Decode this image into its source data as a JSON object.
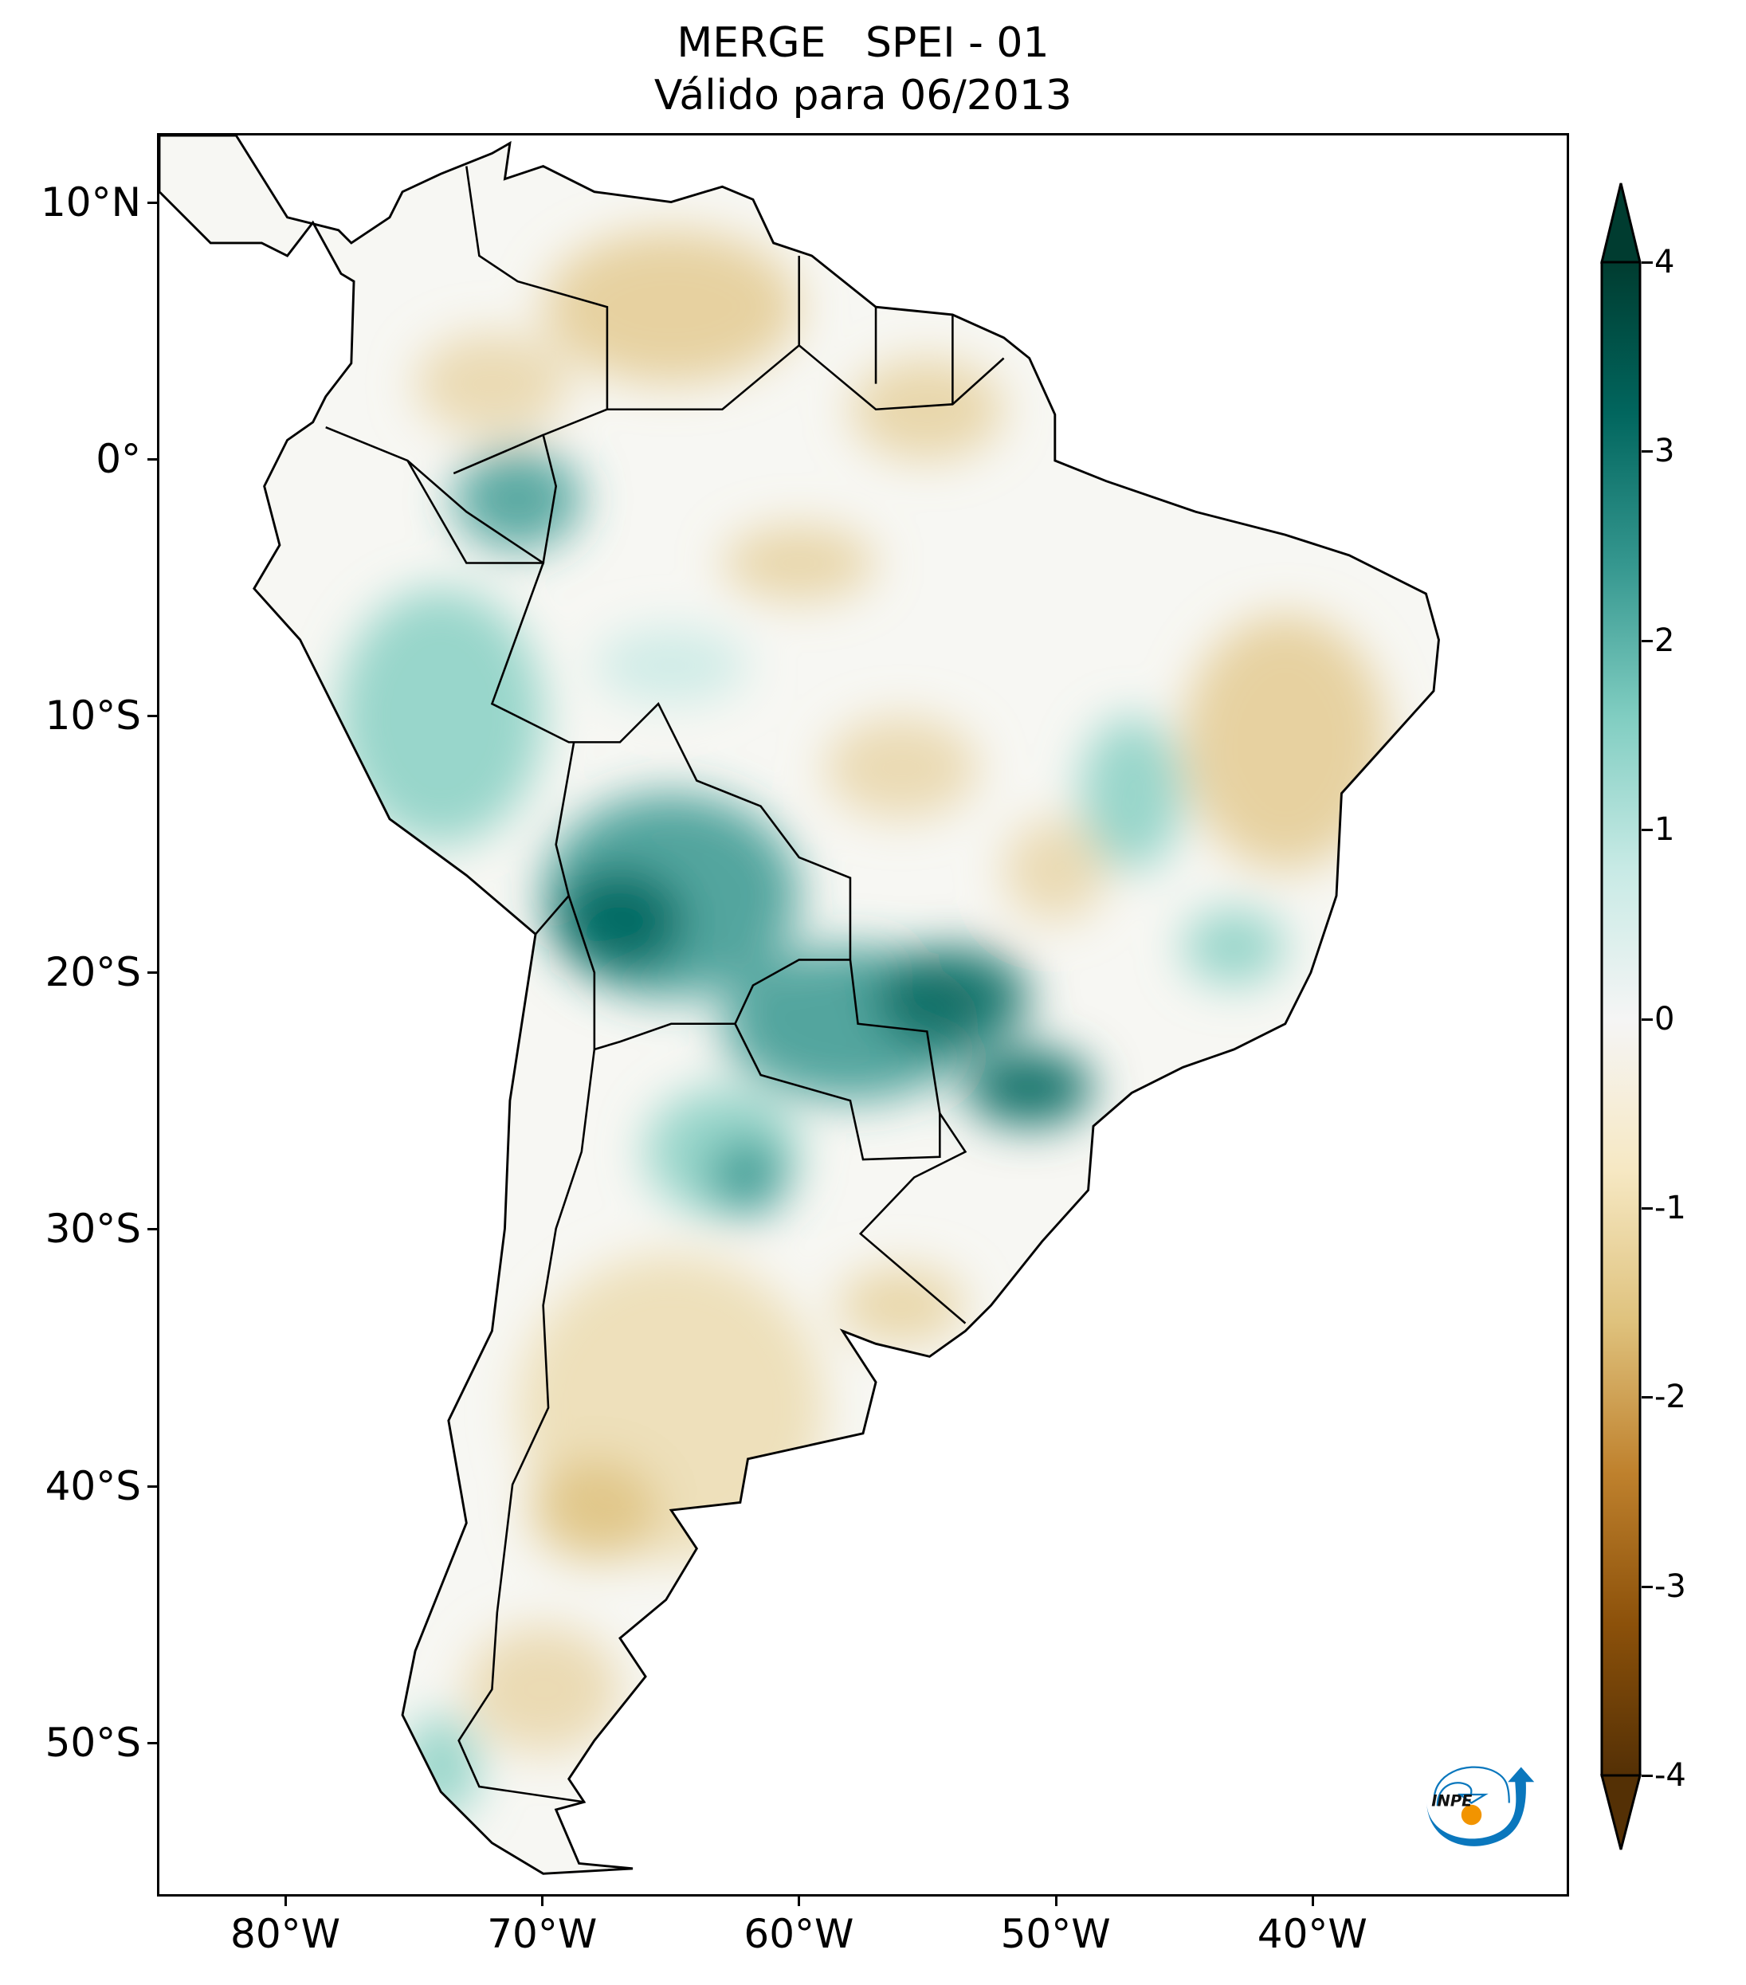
{
  "title": {
    "line1": "MERGE   SPEI - 01",
    "line2": "Válido para 06/2013"
  },
  "map": {
    "extent": {
      "lon_min": -85,
      "lon_max": -30,
      "lat_min": -56,
      "lat_max": 12.7
    },
    "lat_ticks": [
      {
        "value": 10,
        "label": "10°N"
      },
      {
        "value": 0,
        "label": "0°"
      },
      {
        "value": -10,
        "label": "10°S"
      },
      {
        "value": -20,
        "label": "20°S"
      },
      {
        "value": -30,
        "label": "30°S"
      },
      {
        "value": -40,
        "label": "40°S"
      },
      {
        "value": -50,
        "label": "50°S"
      }
    ],
    "lon_ticks": [
      {
        "value": -80,
        "label": "80°W"
      },
      {
        "value": -70,
        "label": "70°W"
      },
      {
        "value": -60,
        "label": "60°W"
      },
      {
        "value": -50,
        "label": "50°W"
      },
      {
        "value": -40,
        "label": "40°W"
      }
    ]
  },
  "colorbar": {
    "ticks": [
      {
        "value": 4,
        "label": "4"
      },
      {
        "value": 3,
        "label": "3"
      },
      {
        "value": 2,
        "label": "2"
      },
      {
        "value": 1,
        "label": "1"
      },
      {
        "value": 0,
        "label": "0"
      },
      {
        "value": -1,
        "label": "-1"
      },
      {
        "value": -2,
        "label": "-2"
      },
      {
        "value": -3,
        "label": "-3"
      },
      {
        "value": -4,
        "label": "-4"
      }
    ],
    "range": [
      -4,
      4
    ],
    "extend": "both",
    "colors": [
      "#003c30",
      "#01665e",
      "#35978f",
      "#80cdc1",
      "#c7eae5",
      "#f5f5f5",
      "#f6e8c3",
      "#dfc27d",
      "#bf812d",
      "#8c510a",
      "#543005"
    ]
  },
  "logo": {
    "text": "INPE",
    "blue": "#0a77bd",
    "orange": "#f29400"
  }
}
